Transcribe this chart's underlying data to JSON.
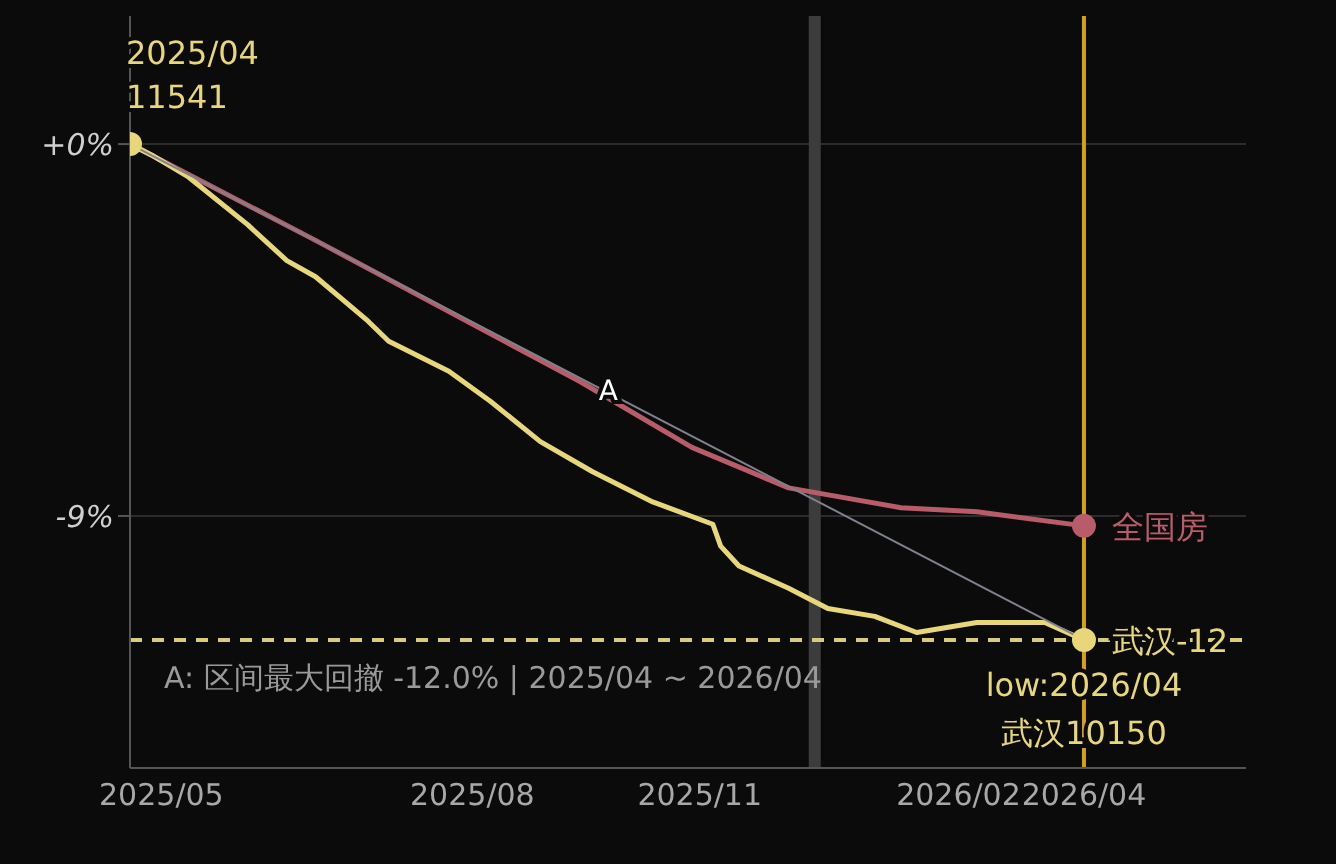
{
  "chart_data": {
    "type": "line",
    "xlim": [
      "2025-04-01",
      "2026-06-02"
    ],
    "ylim": [
      -15.1,
      3.1
    ],
    "xticks": [
      {
        "value": "2025-04-13",
        "label": "2025/05"
      },
      {
        "value": "2025-08-10",
        "label": "2025/08"
      },
      {
        "value": "2025-11-05",
        "label": "2025/11"
      },
      {
        "value": "2026-02-12",
        "label": "2026/02"
      },
      {
        "value": "2026-04-01",
        "label": "2026/04"
      }
    ],
    "yticks": [
      {
        "value": 0,
        "label": "+0%"
      },
      {
        "value": -9,
        "label": "-9%"
      }
    ],
    "grid": "y",
    "series": [
      {
        "name": "全国房",
        "color": "#b85c6a",
        "x": [
          "2025-04-01",
          "2025-06-11",
          "2025-09-20",
          "2025-11-02",
          "2025-12-09",
          "2026-01-21",
          "2026-02-19",
          "2026-04-01"
        ],
        "values": [
          0,
          -2.33,
          -5.74,
          -7.34,
          -8.32,
          -8.8,
          -8.9,
          -9.24
        ]
      },
      {
        "color": "#7d828c",
        "x": [
          "2025-04-01",
          "2026-04-01"
        ],
        "values": [
          0,
          -12.0
        ]
      },
      {
        "name": "武汉-12",
        "color": "#e8d77a",
        "x": [
          "2025-04-01",
          "2025-04-10",
          "2025-04-23",
          "2025-05-16",
          "2025-05-31",
          "2025-06-11",
          "2025-07-01",
          "2025-07-09",
          "2025-08-01",
          "2025-08-17",
          "2025-09-05",
          "2025-09-25",
          "2025-10-18",
          "2025-11-10",
          "2025-11-13",
          "2025-11-20",
          "2025-12-09",
          "2025-12-24",
          "2026-01-11",
          "2026-01-27",
          "2026-02-19",
          "2026-03-17",
          "2026-04-01"
        ],
        "values": [
          0,
          -0.29,
          -0.78,
          -1.95,
          -2.82,
          -3.21,
          -4.28,
          -4.77,
          -5.5,
          -6.23,
          -7.2,
          -7.93,
          -8.66,
          -9.2,
          -9.73,
          -10.21,
          -10.75,
          -11.24,
          -11.43,
          -11.82,
          -11.58,
          -11.58,
          -12.0
        ]
      }
    ],
    "ref_lines": [
      {
        "axis": "x",
        "value": "2025-12-19",
        "color": "#3c3c3c"
      },
      {
        "axis": "x",
        "value": "2026-04-01",
        "color": "#d4a017"
      },
      {
        "axis": "y",
        "value": -12,
        "color": "#d8cc7a",
        "line_style": "dashed"
      }
    ],
    "annotations": [
      {
        "text": "2025/04",
        "x": "2025-04-01",
        "y": 0
      },
      {
        "text": "11541",
        "x": "2025-04-01",
        "y": 0
      },
      {
        "text": "A",
        "x": "2025-10-01",
        "y": -6.2
      },
      {
        "text": "low:2026/04",
        "x": "2026-04-01",
        "y": -12
      },
      {
        "text": "武汉10150",
        "x": "2026-04-01",
        "y": -12
      },
      "A: 区间最大回撤 -12.0% | 2025/04 ~ 2026/04"
    ]
  }
}
